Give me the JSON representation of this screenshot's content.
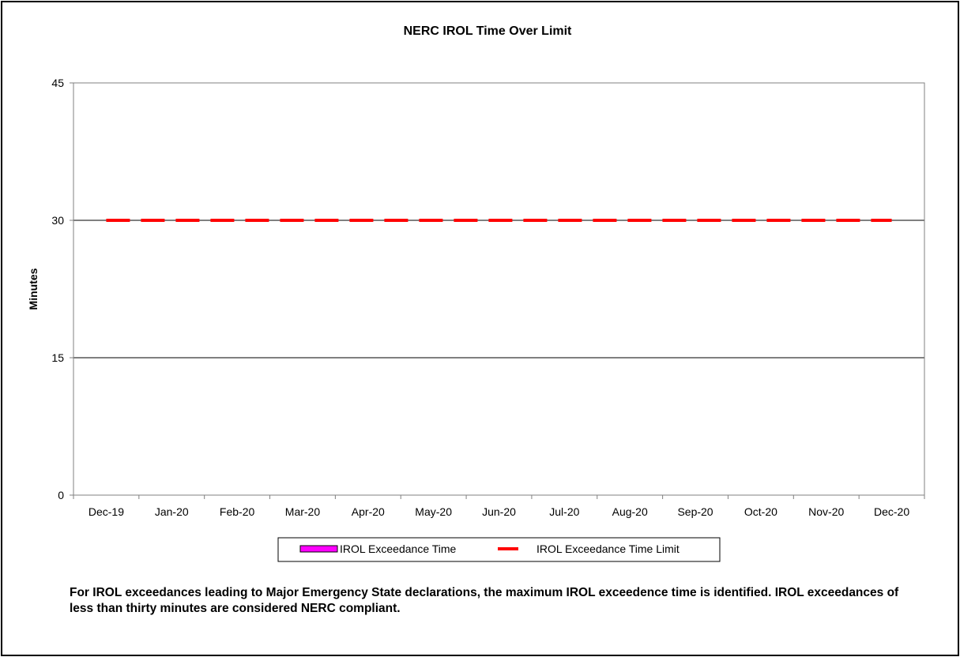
{
  "chart_data": {
    "type": "bar",
    "title": "NERC IROL Time Over Limit",
    "xlabel": "",
    "ylabel": "Minutes",
    "categories": [
      "Dec-19",
      "Jan-20",
      "Feb-20",
      "Mar-20",
      "Apr-20",
      "May-20",
      "Jun-20",
      "Jul-20",
      "Aug-20",
      "Sep-20",
      "Oct-20",
      "Nov-20",
      "Dec-20"
    ],
    "ylim": [
      0,
      45
    ],
    "yticks": [
      0,
      15,
      30,
      45
    ],
    "grid": "horizontal",
    "legend_position": "bottom",
    "series": [
      {
        "name": "IROL Exceedance Time",
        "type": "bar",
        "color": "#ff00ff",
        "values": [
          0,
          0,
          0,
          0,
          0,
          0,
          0,
          0,
          0,
          0,
          0,
          0,
          0
        ]
      },
      {
        "name": "IROL Exceedance Time Limit",
        "type": "line",
        "style": "dashed",
        "color": "#ff0000",
        "values": [
          30,
          30,
          30,
          30,
          30,
          30,
          30,
          30,
          30,
          30,
          30,
          30,
          30
        ]
      }
    ]
  },
  "footnote": "For IROL exceedances leading to Major Emergency State declarations, the maximum  IROL exceedence time is identified. IROL exceedances of less than thirty minutes are considered NERC compliant."
}
